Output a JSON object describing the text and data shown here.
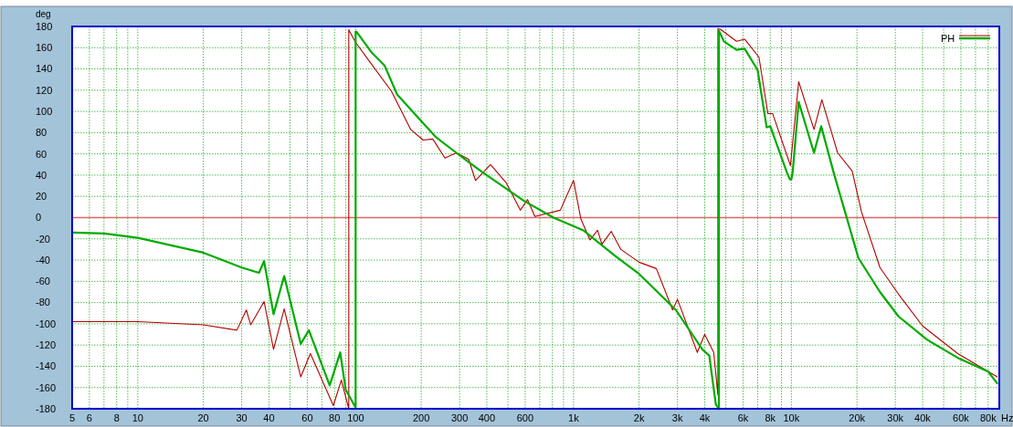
{
  "chart_data": {
    "type": "line",
    "xlabel": "Hz",
    "ylabel": "deg",
    "log": "x",
    "xlim": [
      5,
      90000
    ],
    "ylim": [
      -180,
      180
    ],
    "xticks": [
      5,
      6,
      {
        "value": 7,
        "label": null
      },
      8,
      {
        "value": 9,
        "label": null
      },
      10,
      20,
      30,
      40,
      {
        "value": 50,
        "label": null
      },
      60,
      {
        "value": 70,
        "label": null
      },
      80,
      {
        "value": 90,
        "label": null
      },
      100,
      200,
      300,
      400,
      {
        "value": 500,
        "label": null
      },
      600,
      {
        "value": 700,
        "label": null
      },
      {
        "value": 800,
        "label": null
      },
      {
        "value": 900,
        "label": null
      },
      {
        "value": 1000,
        "label": "1k"
      },
      {
        "value": 2000,
        "label": "2k"
      },
      {
        "value": 3000,
        "label": "3k"
      },
      {
        "value": 4000,
        "label": "4k"
      },
      {
        "value": 5000,
        "label": null
      },
      {
        "value": 6000,
        "label": "6k"
      },
      {
        "value": 7000,
        "label": null
      },
      {
        "value": 8000,
        "label": "8k"
      },
      {
        "value": 9000,
        "label": null
      },
      {
        "value": 10000,
        "label": "10k"
      },
      {
        "value": 20000,
        "label": "20k"
      },
      {
        "value": 30000,
        "label": "30k"
      },
      {
        "value": 40000,
        "label": "40k"
      },
      {
        "value": 50000,
        "label": null
      },
      {
        "value": 60000,
        "label": "60k"
      },
      {
        "value": 70000,
        "label": null
      },
      {
        "value": 80000,
        "label": "80k"
      }
    ],
    "yticks": [
      -180,
      -160,
      -140,
      -120,
      -100,
      -80,
      -60,
      -40,
      -20,
      0,
      20,
      40,
      60,
      80,
      100,
      120,
      140,
      160,
      180
    ],
    "grid": true,
    "legend": "top right",
    "marker": "none",
    "line_style": "solid",
    "ref_lines": [
      {
        "axis": "y",
        "value": 0,
        "color": "#e06666"
      }
    ],
    "series": [
      {
        "color": "#b40000",
        "x": [
          5,
          10,
          20,
          28.5,
          31.5,
          33,
          38,
          42,
          47,
          56,
          62,
          79,
          86,
          93,
          93,
          94,
          100,
          114,
          146,
          179,
          204,
          226,
          257,
          290,
          330,
          355,
          416,
          490,
          570,
          615,
          665,
          870,
          1000,
          1080,
          1190,
          1290,
          1350,
          1490,
          1650,
          2000,
          2400,
          2850,
          3000,
          3700,
          4000,
          4400,
          4600,
          4600,
          4750,
          5600,
          6100,
          7100,
          7800,
          8200,
          9900,
          10800,
          12700,
          13800,
          16300,
          19000,
          21000,
          25500,
          31000,
          40000,
          58000,
          88000
        ],
        "values": [
          -98,
          -98,
          -101,
          -106,
          -87,
          -101,
          -79,
          -124,
          -86,
          -150,
          -128,
          -177,
          -153,
          -180,
          177,
          175,
          165,
          149,
          119,
          83,
          73,
          74,
          56,
          61,
          55,
          35,
          50,
          33,
          7,
          17,
          1,
          7,
          35,
          -1,
          -21,
          -12,
          -25,
          -13,
          -30,
          -42,
          -48,
          -87,
          -77,
          -127,
          -110,
          -127,
          -167,
          178,
          177,
          166,
          168,
          151,
          98,
          98,
          49,
          128,
          83,
          111,
          61,
          44,
          5,
          -47,
          -72,
          -102,
          -128,
          -150
        ]
      },
      {
        "name": "PH",
        "color": "#00aa00",
        "x": [
          5,
          7,
          10,
          20,
          30,
          36,
          38,
          42,
          47,
          56,
          61,
          76,
          85,
          90,
          100,
          100,
          101,
          119,
          136,
          155,
          198,
          233,
          290,
          380,
          590,
          809,
          1110,
          1550,
          2000,
          2950,
          3900,
          4200,
          4500,
          4650,
          4650,
          4900,
          5600,
          6100,
          7000,
          7700,
          8000,
          9600,
          9850,
          10000,
          10150,
          10800,
          12700,
          13700,
          15800,
          18000,
          20300,
          25500,
          31000,
          42000,
          58000,
          80000,
          88000
        ],
        "values": [
          -14,
          -15,
          -19,
          -33,
          -47,
          -52,
          -41,
          -91,
          -55,
          -119,
          -106,
          -158,
          -127,
          -162,
          -179,
          175,
          175,
          155,
          143,
          116,
          92,
          76,
          61,
          43,
          16,
          0,
          -12,
          -36,
          -53,
          -87,
          -124,
          -130,
          -176,
          -180,
          176,
          166,
          158,
          159,
          139,
          85,
          86,
          41,
          36,
          36,
          44,
          109,
          61,
          86,
          39,
          -1,
          -38,
          -70,
          -93,
          -115,
          -132,
          -145,
          -156
        ]
      }
    ]
  }
}
